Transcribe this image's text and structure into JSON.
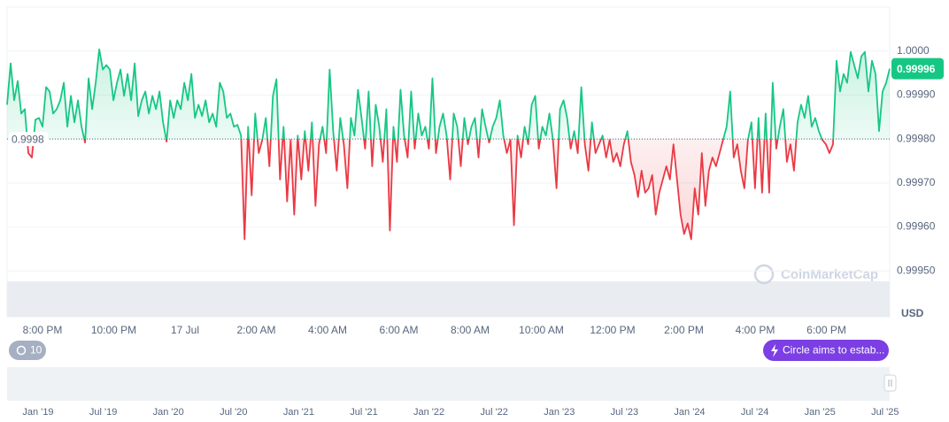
{
  "chart_data": {
    "type": "baseline-line",
    "currency": "USD",
    "watermark": "CoinMarketCap",
    "baseline": 0.9998,
    "last_price": 0.99996,
    "colors": {
      "up": "#16c784",
      "down": "#ea3943"
    },
    "ylim": [
      0.9994,
      1.0001
    ],
    "yticks": [
      {
        "value": 1,
        "label": "1.0000"
      },
      {
        "value": 0.9999,
        "label": "0.99990"
      },
      {
        "value": 0.9998,
        "label": "0.99980"
      },
      {
        "value": 0.9997,
        "label": "0.99970"
      },
      {
        "value": 0.9996,
        "label": "0.99960"
      },
      {
        "value": 0.9995,
        "label": "0.99950"
      }
    ],
    "x_tick_labels": [
      "8:00 PM",
      "10:00 PM",
      "17 Jul",
      "2:00 AM",
      "4:00 AM",
      "6:00 AM",
      "8:00 AM",
      "10:00 AM",
      "12:00 PM",
      "2:00 PM",
      "4:00 PM",
      "6:00 PM"
    ],
    "navigator_labels": [
      "Jan '19",
      "Jul '19",
      "Jan '20",
      "Jul '20",
      "Jan '21",
      "Jul '21",
      "Jan '22",
      "Jul '22",
      "Jan '23",
      "Jul '23",
      "Jan '24",
      "Jul '24",
      "Jan '25",
      "Jul '25"
    ],
    "history_badge": "10",
    "news_badge": "Circle aims to estab...",
    "values": [
      0.999878,
      0.999972,
      0.999888,
      0.999932,
      0.999858,
      0.999868,
      0.999768,
      0.999758,
      0.999844,
      0.999848,
      0.999828,
      0.999918,
      0.999908,
      0.999858,
      0.999868,
      0.999888,
      0.999928,
      0.999828,
      0.999898,
      0.999838,
      0.999888,
      0.999828,
      0.999792,
      0.999938,
      0.999868,
      0.999928,
      1.000004,
      0.999958,
      0.999968,
      0.999958,
      0.999888,
      0.999928,
      0.999958,
      0.999898,
      0.999948,
      0.999888,
      0.999972,
      0.999852,
      0.999888,
      0.999908,
      0.999858,
      0.999898,
      0.999868,
      0.999908,
      0.999838,
      0.999794,
      0.999888,
      0.999848,
      0.999888,
      0.999868,
      0.999928,
      0.999888,
      0.999948,
      0.999848,
      0.999878,
      0.999852,
      0.999888,
      0.999838,
      0.999858,
      0.999828,
      0.999928,
      0.999908,
      0.999848,
      0.999858,
      0.999828,
      0.999832,
      0.999808,
      0.999572,
      0.999828,
      0.999672,
      0.999858,
      0.999768,
      0.999798,
      0.999848,
      0.999738,
      0.999898,
      0.999936,
      0.999708,
      0.999828,
      0.999658,
      0.999798,
      0.999628,
      0.999808,
      0.999708,
      0.999818,
      0.999728,
      0.999838,
      0.999648,
      0.999788,
      0.999828,
      0.999768,
      0.999958,
      0.999818,
      0.999728,
      0.999848,
      0.999788,
      0.999688,
      0.999848,
      0.999808,
      0.999912,
      0.999848,
      0.999778,
      0.999908,
      0.999738,
      0.999878,
      0.999828,
      0.999748,
      0.999868,
      0.999592,
      0.999828,
      0.999748,
      0.999912,
      0.999808,
      0.999758,
      0.999908,
      0.999778,
      0.999858,
      0.999808,
      0.999828,
      0.999778,
      0.999938,
      0.999768,
      0.999828,
      0.999858,
      0.999808,
      0.999708,
      0.999858,
      0.999828,
      0.999738,
      0.999848,
      0.999788,
      0.999828,
      0.999848,
      0.999758,
      0.999868,
      0.999828,
      0.999792,
      0.999828,
      0.999848,
      0.999888,
      0.999808,
      0.999768,
      0.999798,
      0.999604,
      0.999808,
      0.999758,
      0.999828,
      0.999788,
      0.999878,
      0.999898,
      0.999778,
      0.999828,
      0.999808,
      0.999858,
      0.999798,
      0.999688,
      0.999868,
      0.999888,
      0.999848,
      0.999778,
      0.999818,
      0.999768,
      0.999918,
      0.999788,
      0.999728,
      0.999838,
      0.999768,
      0.999788,
      0.999808,
      0.999758,
      0.999798,
      0.999748,
      0.999768,
      0.999738,
      0.999788,
      0.999818,
      0.999748,
      0.999718,
      0.999668,
      0.999728,
      0.999678,
      0.999688,
      0.999718,
      0.999628,
      0.999678,
      0.999708,
      0.999738,
      0.999708,
      0.999788,
      0.999708,
      0.999628,
      0.999584,
      0.999608,
      0.999572,
      0.999688,
      0.999628,
      0.999768,
      0.999648,
      0.999728,
      0.999758,
      0.999738,
      0.999768,
      0.999798,
      0.999828,
      0.999908,
      0.999758,
      0.999788,
      0.999728,
      0.999688,
      0.999798,
      0.999838,
      0.999688,
      0.999848,
      0.999678,
      0.999858,
      0.999678,
      0.999928,
      0.999778,
      0.999828,
      0.999868,
      0.999748,
      0.999788,
      0.999728,
      0.999838,
      0.999878,
      0.999848,
      0.999898,
      0.999828,
      0.999848,
      0.999818,
      0.999798,
      0.999788,
      0.999768,
      0.999788,
      0.999978,
      0.999908,
      0.999948,
      0.999928,
      0.999998,
      0.999968,
      0.999938,
      0.999988,
      0.999998,
      0.999908,
      0.999978,
      0.999948,
      0.999818,
      0.999908,
      0.999928,
      0.99996
    ]
  }
}
